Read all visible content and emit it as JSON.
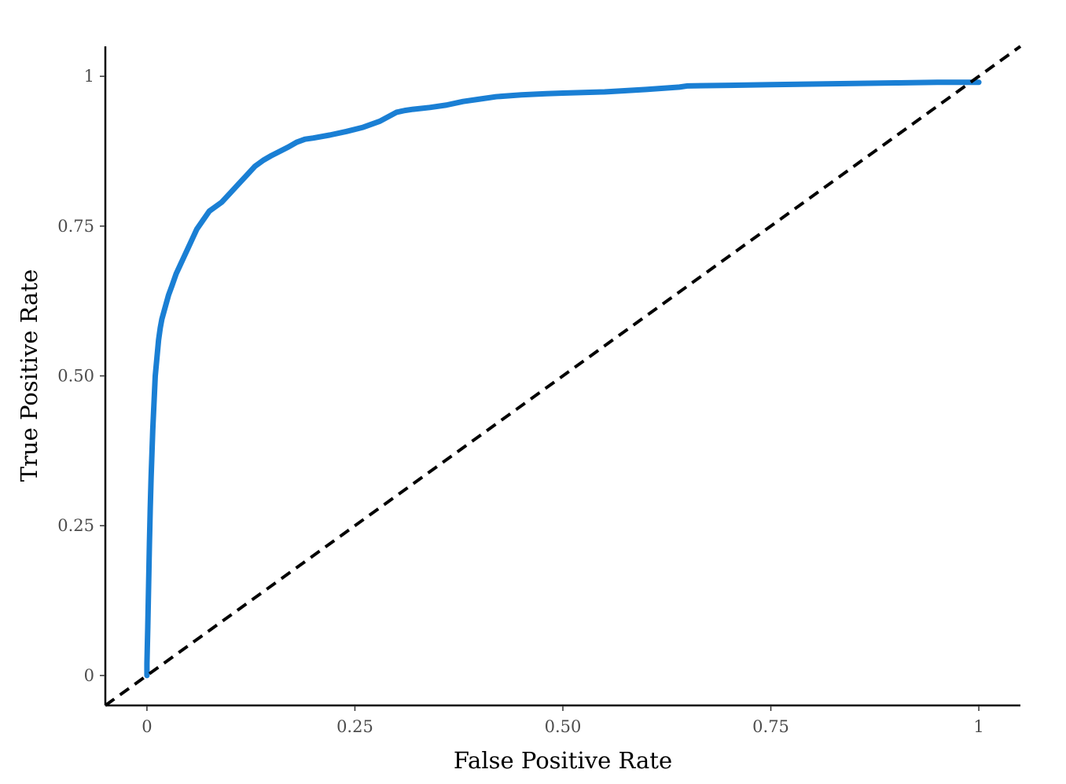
{
  "chart_data": {
    "type": "line",
    "title": "",
    "xlabel": "False Positive Rate",
    "ylabel": "True Positive Rate",
    "xlim": [
      -0.05,
      1.05
    ],
    "ylim": [
      -0.05,
      1.05
    ],
    "x_ticks": [
      0,
      0.25,
      0.5,
      0.75,
      1
    ],
    "x_tick_labels": [
      "0",
      "0.25",
      "0.50",
      "0.75",
      "1"
    ],
    "y_ticks": [
      0,
      0.25,
      0.5,
      0.75,
      1
    ],
    "y_tick_labels": [
      "0",
      "0.25",
      "0.50",
      "0.75",
      "1"
    ],
    "grid": false,
    "legend": "none",
    "colors": {
      "roc": "#1a7fd4",
      "reference": "#000000",
      "axis": "#000000",
      "tick_text": "#4d4d4d"
    },
    "series": [
      {
        "style": "solid",
        "x": [
          0,
          0,
          0.001,
          0.002,
          0.003,
          0.004,
          0.005,
          0.006,
          0.007,
          0.008,
          0.009,
          0.01,
          0.012,
          0.014,
          0.016,
          0.018,
          0.02,
          0.023,
          0.026,
          0.03,
          0.035,
          0.04,
          0.045,
          0.05,
          0.055,
          0.06,
          0.065,
          0.07,
          0.075,
          0.08,
          0.09,
          0.1,
          0.11,
          0.12,
          0.13,
          0.14,
          0.15,
          0.16,
          0.17,
          0.18,
          0.19,
          0.2,
          0.22,
          0.24,
          0.26,
          0.28,
          0.3,
          0.31,
          0.32,
          0.34,
          0.36,
          0.38,
          0.4,
          0.42,
          0.45,
          0.48,
          0.5,
          0.55,
          0.6,
          0.64,
          0.65,
          0.7,
          0.75,
          0.8,
          0.85,
          0.9,
          0.95,
          1.0
        ],
        "y": [
          0,
          0.02,
          0.08,
          0.15,
          0.22,
          0.28,
          0.33,
          0.37,
          0.41,
          0.44,
          0.47,
          0.5,
          0.53,
          0.56,
          0.58,
          0.595,
          0.605,
          0.62,
          0.635,
          0.65,
          0.67,
          0.685,
          0.7,
          0.715,
          0.73,
          0.745,
          0.755,
          0.765,
          0.775,
          0.78,
          0.79,
          0.805,
          0.82,
          0.835,
          0.85,
          0.86,
          0.868,
          0.875,
          0.882,
          0.89,
          0.895,
          0.897,
          0.902,
          0.908,
          0.915,
          0.925,
          0.94,
          0.943,
          0.945,
          0.948,
          0.952,
          0.958,
          0.962,
          0.966,
          0.969,
          0.971,
          0.972,
          0.974,
          0.978,
          0.982,
          0.984,
          0.985,
          0.986,
          0.987,
          0.988,
          0.989,
          0.99,
          0.99
        ]
      },
      {
        "style": "dashed",
        "x": [
          -0.05,
          1.05
        ],
        "y": [
          -0.05,
          1.05
        ]
      }
    ]
  }
}
